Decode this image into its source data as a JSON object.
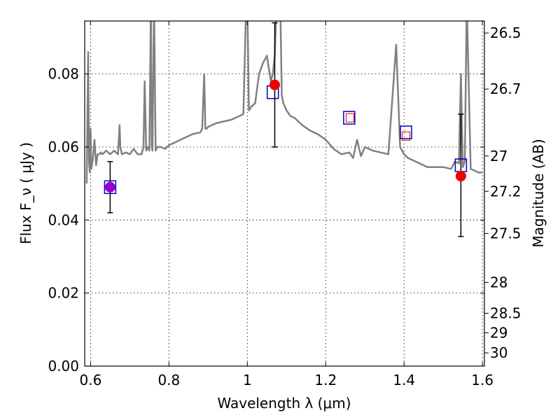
{
  "chart_data": {
    "type": "line",
    "xlabel": "Wavelength  λ (μm)",
    "ylabel": "Flux  F_ν  ( μJy )",
    "y2label": "Magnitude (AB)",
    "xlim": [
      0.585,
      1.605
    ],
    "ylim": [
      0.0,
      0.0945
    ],
    "grid": true,
    "x_ticks": [
      0.6,
      0.8,
      1.0,
      1.2,
      1.4,
      1.6
    ],
    "x_tick_labels": [
      "0.6",
      "0.8",
      "1",
      "1.2",
      "1.4",
      "1.6"
    ],
    "y_ticks": [
      0.0,
      0.02,
      0.04,
      0.06,
      0.08
    ],
    "y_tick_labels": [
      "0.00",
      "0.02",
      "0.04",
      "0.06",
      "0.08"
    ],
    "y2_ticks": [
      26.5,
      26.7,
      27,
      27.2,
      27.5,
      28,
      28.5,
      29,
      30
    ],
    "y2_tick_labels": [
      "26.5",
      "26.7",
      "27",
      "27.2",
      "27.5",
      "28",
      "28.5",
      "29",
      "30"
    ],
    "colors": {
      "spectrum": "#808080",
      "model_marker": "#0000cc",
      "observed_marker": "#ee0000",
      "overlap_marker": "#9900cc",
      "errorbar": "#000000",
      "grid": "#000000"
    },
    "series": [
      {
        "kind": "spectrum",
        "x": [
          0.59,
          0.594,
          0.596,
          0.598,
          0.6,
          0.602,
          0.606,
          0.61,
          0.614,
          0.618,
          0.622,
          0.626,
          0.63,
          0.64,
          0.65,
          0.66,
          0.67,
          0.674,
          0.676,
          0.68,
          0.69,
          0.7,
          0.71,
          0.72,
          0.73,
          0.735,
          0.738,
          0.742,
          0.746,
          0.75,
          0.754,
          0.756,
          0.758,
          0.762,
          0.766,
          0.77,
          0.78,
          0.79,
          0.8,
          0.82,
          0.84,
          0.86,
          0.88,
          0.885,
          0.89,
          0.893,
          0.896,
          0.9,
          0.92,
          0.94,
          0.96,
          0.98,
          0.99,
          0.996,
          0.998,
          1.0,
          1.004,
          1.01,
          1.02,
          1.03,
          1.04,
          1.05,
          1.06,
          1.065,
          1.07,
          1.075,
          1.08,
          1.084,
          1.088,
          1.092,
          1.096,
          1.1,
          1.11,
          1.12,
          1.14,
          1.16,
          1.18,
          1.2,
          1.22,
          1.24,
          1.26,
          1.27,
          1.28,
          1.29,
          1.3,
          1.32,
          1.34,
          1.36,
          1.38,
          1.39,
          1.4,
          1.41,
          1.42,
          1.44,
          1.46,
          1.48,
          1.5,
          1.52,
          1.53,
          1.54,
          1.545,
          1.55,
          1.555,
          1.56,
          1.57,
          1.58,
          1.59,
          1.6
        ],
        "y": [
          0.05,
          0.086,
          0.056,
          0.053,
          0.065,
          0.054,
          0.057,
          0.062,
          0.055,
          0.058,
          0.058,
          0.0585,
          0.058,
          0.059,
          0.058,
          0.059,
          0.058,
          0.066,
          0.06,
          0.058,
          0.0585,
          0.058,
          0.0595,
          0.058,
          0.058,
          0.06,
          0.078,
          0.059,
          0.06,
          0.059,
          0.1,
          0.06,
          0.059,
          0.1,
          0.059,
          0.06,
          0.06,
          0.0595,
          0.0605,
          0.0615,
          0.0625,
          0.0635,
          0.064,
          0.065,
          0.08,
          0.065,
          0.065,
          0.0655,
          0.0665,
          0.067,
          0.0675,
          0.0685,
          0.069,
          0.095,
          0.1,
          0.1,
          0.07,
          0.071,
          0.072,
          0.08,
          0.083,
          0.085,
          0.078,
          0.08,
          0.085,
          0.1,
          0.095,
          0.1,
          0.074,
          0.072,
          0.071,
          0.07,
          0.0685,
          0.068,
          0.066,
          0.0645,
          0.0635,
          0.062,
          0.0595,
          0.058,
          0.0585,
          0.057,
          0.062,
          0.0575,
          0.06,
          0.059,
          0.0585,
          0.058,
          0.088,
          0.06,
          0.058,
          0.057,
          0.0565,
          0.0555,
          0.0545,
          0.0545,
          0.0545,
          0.054,
          0.056,
          0.0555,
          0.08,
          0.0545,
          0.056,
          0.1,
          0.054,
          0.0535,
          0.053,
          0.053
        ]
      },
      {
        "kind": "model-photometry",
        "name": "",
        "x": [
          0.65,
          1.065,
          1.26,
          1.405,
          1.545
        ],
        "y": [
          0.049,
          0.075,
          0.068,
          0.064,
          0.055
        ]
      },
      {
        "kind": "observed-photometry",
        "name": "",
        "x": [
          0.65,
          1.07,
          1.262,
          1.405,
          1.545
        ],
        "y": [
          0.049,
          0.077,
          0.068,
          0.063,
          0.052
        ],
        "yerr_low": [
          0.042,
          0.06,
          null,
          null,
          0.0355
        ],
        "yerr_high": [
          0.056,
          0.094,
          null,
          null,
          0.069
        ],
        "marker": [
          "overlap",
          "filled",
          "open-small",
          "open-small",
          "filled"
        ]
      }
    ]
  }
}
